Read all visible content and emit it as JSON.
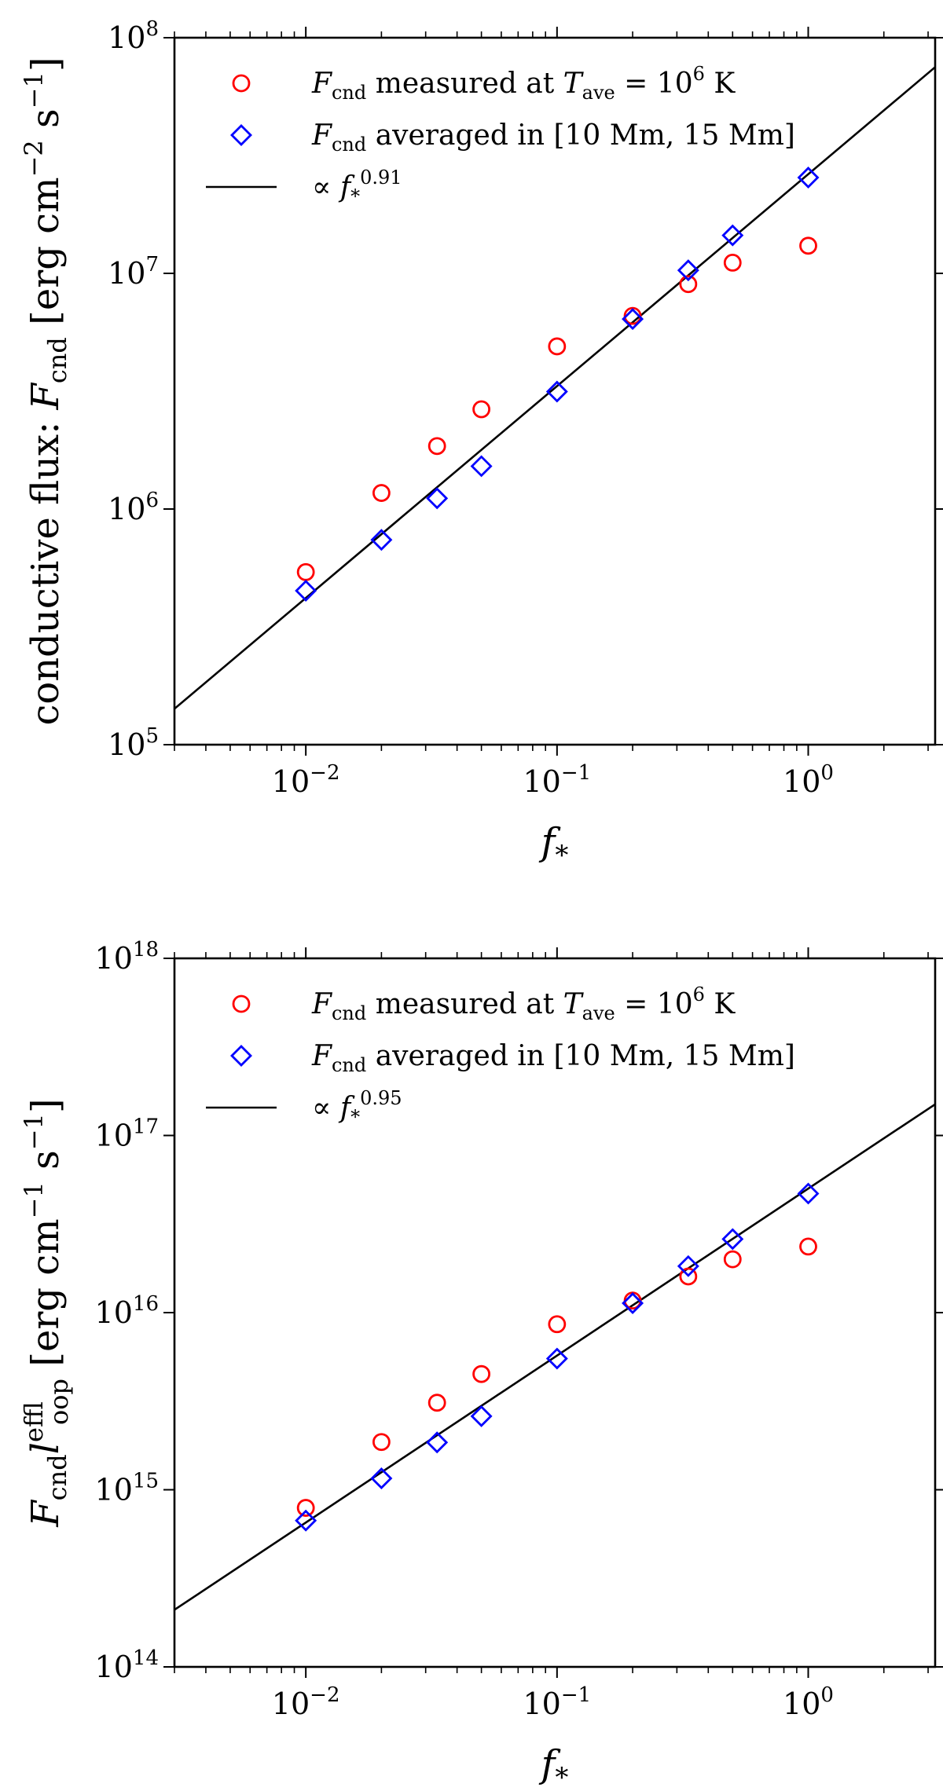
{
  "chart_data": [
    {
      "type": "scatter",
      "xscale": "log",
      "yscale": "log",
      "xlim": [
        0.003,
        3.2
      ],
      "ylim": [
        100000,
        100000000
      ],
      "x_ticks": [
        {
          "base": "10",
          "exp": "−2",
          "value": 0.01
        },
        {
          "base": "10",
          "exp": "−1",
          "value": 0.1
        },
        {
          "base": "10",
          "exp": "0",
          "value": 1
        }
      ],
      "y_ticks": [
        {
          "base": "10",
          "exp": "5",
          "value": 100000
        },
        {
          "base": "10",
          "exp": "6",
          "value": 1000000
        },
        {
          "base": "10",
          "exp": "7",
          "value": 10000000
        },
        {
          "base": "10",
          "exp": "8",
          "value": 100000000
        }
      ],
      "xlabel": "f*",
      "ylabel": "conductive flux: Fcnd [erg cm⁻² s⁻¹]",
      "ylabel_parts": {
        "prefix": "conductive flux: ",
        "var": "F",
        "sub": "cnd",
        "units": "[erg cm",
        "exp1": "−2",
        "mid": " s",
        "exp2": "−1",
        "close": "]"
      },
      "legend_placement": "top-left",
      "series": [
        {
          "name": "Fcnd measured at Tave = 10⁶ K",
          "label": {
            "var": "F",
            "sub": "cnd",
            "mid": " measured at ",
            "var2": "T",
            "sub2": "ave",
            "eq": " = 10",
            "sup": "6",
            "end": " K"
          },
          "marker": "circle",
          "color": "#ff0000",
          "points": [
            [
              0.01,
              540000
            ],
            [
              0.02,
              1170000
            ],
            [
              0.0333,
              1850000
            ],
            [
              0.05,
              2650000
            ],
            [
              0.1,
              4900000
            ],
            [
              0.2,
              6600000
            ],
            [
              0.333,
              9000000
            ],
            [
              0.5,
              11100000
            ],
            [
              1.0,
              13100000
            ]
          ]
        },
        {
          "name": "Fcnd averaged in [10 Mm, 15 Mm]",
          "label": {
            "var": "F",
            "sub": "cnd",
            "mid": " averaged in [10 Mm, 15 Mm]"
          },
          "marker": "diamond",
          "color": "#0000ff",
          "points": [
            [
              0.01,
              450000
            ],
            [
              0.02,
              740000
            ],
            [
              0.0333,
              1110000
            ],
            [
              0.05,
              1520000
            ],
            [
              0.1,
              3150000
            ],
            [
              0.2,
              6400000
            ],
            [
              0.333,
              10300000
            ],
            [
              0.5,
              14500000
            ],
            [
              1.0,
              25500000
            ]
          ]
        },
        {
          "name": "∝ f*^0.91",
          "label": {
            "pre": "∝ ",
            "var": "f",
            "sub": "*",
            "sup": "0.91"
          },
          "marker": "line",
          "color": "#000000",
          "points": [
            [
              0.003,
              142000
            ],
            [
              3.2,
              75000000
            ]
          ]
        }
      ]
    },
    {
      "type": "scatter",
      "xscale": "log",
      "yscale": "log",
      "xlim": [
        0.003,
        3.2
      ],
      "ylim": [
        100000000000000,
        1000000000000000000
      ],
      "x_ticks": [
        {
          "base": "10",
          "exp": "−2",
          "value": 0.01
        },
        {
          "base": "10",
          "exp": "−1",
          "value": 0.1
        },
        {
          "base": "10",
          "exp": "0",
          "value": 1
        }
      ],
      "y_ticks": [
        {
          "base": "10",
          "exp": "14",
          "value": 100000000000000
        },
        {
          "base": "10",
          "exp": "15",
          "value": 1000000000000000
        },
        {
          "base": "10",
          "exp": "16",
          "value": 10000000000000000
        },
        {
          "base": "10",
          "exp": "17",
          "value": 100000000000000000
        },
        {
          "base": "10",
          "exp": "18",
          "value": 1000000000000000000
        }
      ],
      "xlabel": "f*",
      "ylabel": "Fcnd l_loop^eff [erg cm⁻¹ s⁻¹]",
      "ylabel_parts": {
        "var": "F",
        "sub": "cnd",
        "var2": "l",
        "sub2": "loop",
        "sup2": "eff",
        "units": " [erg cm",
        "exp1": "−1",
        "mid": " s",
        "exp2": "−1",
        "close": "]"
      },
      "legend_placement": "top-left",
      "series": [
        {
          "name": "Fcnd measured at Tave = 10⁶ K",
          "label": {
            "var": "F",
            "sub": "cnd",
            "mid": " measured at ",
            "var2": "T",
            "sub2": "ave",
            "eq": " = 10",
            "sup": "6",
            "end": " K"
          },
          "marker": "circle",
          "color": "#ff0000",
          "points": [
            [
              0.01,
              790000000000000
            ],
            [
              0.02,
              1860000000000000
            ],
            [
              0.0333,
              3100000000000000
            ],
            [
              0.05,
              4500000000000000
            ],
            [
              0.1,
              8600000000000000
            ],
            [
              0.2,
              11700000000000000
            ],
            [
              0.333,
              16000000000000000
            ],
            [
              0.5,
              20000000000000000
            ],
            [
              1.0,
              23600000000000000
            ]
          ]
        },
        {
          "name": "Fcnd averaged in [10 Mm, 15 Mm]",
          "label": {
            "var": "F",
            "sub": "cnd",
            "mid": " averaged in [10 Mm, 15 Mm]"
          },
          "marker": "diamond",
          "color": "#0000ff",
          "points": [
            [
              0.01,
              670000000000000
            ],
            [
              0.02,
              1160000000000000
            ],
            [
              0.0333,
              1850000000000000
            ],
            [
              0.05,
              2600000000000000
            ],
            [
              0.1,
              5500000000000000
            ],
            [
              0.2,
              11300000000000000
            ],
            [
              0.333,
              18300000000000000
            ],
            [
              0.5,
              26000000000000000
            ],
            [
              1.0,
              47000000000000000
            ]
          ]
        },
        {
          "name": "∝ f*^0.95",
          "label": {
            "pre": "∝ ",
            "var": "f",
            "sub": "*",
            "sup": "0.95"
          },
          "marker": "line",
          "color": "#000000",
          "points": [
            [
              0.003,
              210000000000000
            ],
            [
              3.2,
              150000000000000000
            ]
          ]
        }
      ]
    }
  ]
}
